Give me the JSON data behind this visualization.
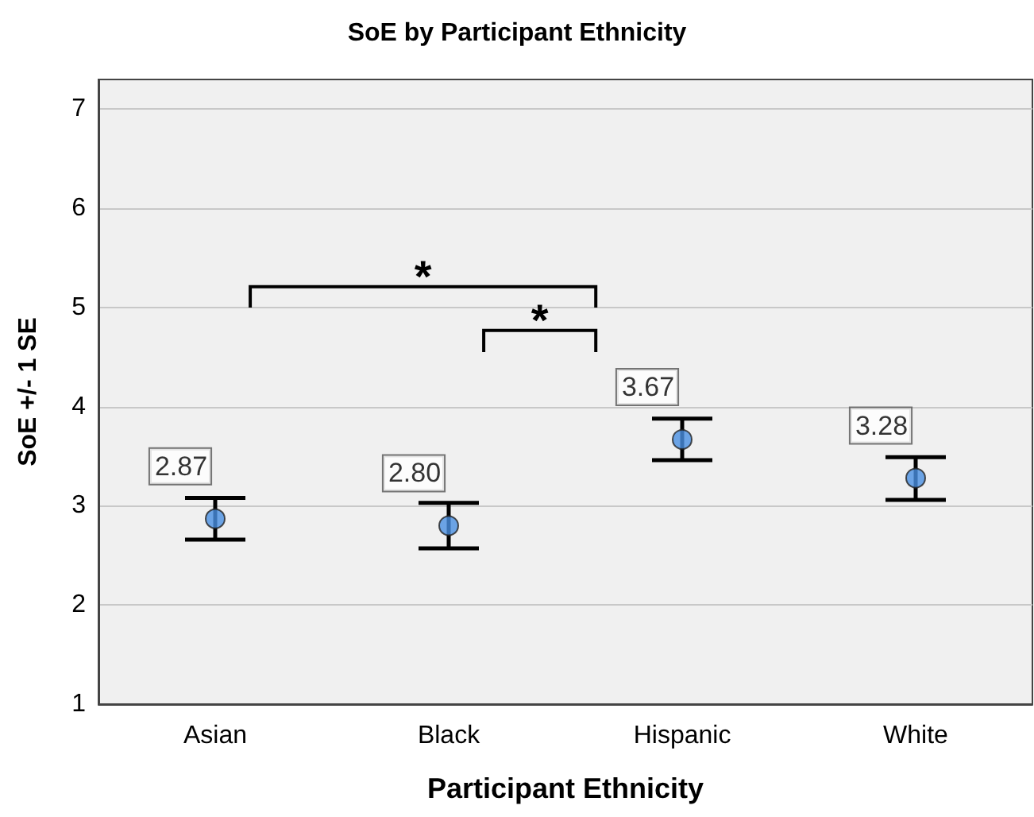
{
  "chart_data": {
    "type": "scatter",
    "title": "SoE by Participant Ethnicity",
    "xlabel": "Participant Ethnicity",
    "ylabel": "SoE +/- 1 SE",
    "categories": [
      "Asian",
      "Black",
      "Hispanic",
      "White"
    ],
    "values": [
      2.87,
      2.8,
      3.67,
      3.28
    ],
    "errors": [
      [
        2.66,
        3.08
      ],
      [
        2.57,
        3.03
      ],
      [
        3.46,
        3.88
      ],
      [
        3.06,
        3.49
      ]
    ],
    "value_labels": [
      "2.87",
      "2.80",
      "3.67",
      "3.28"
    ],
    "color": "#4a90e2",
    "marker": "circle",
    "ylim": [
      1,
      7.3
    ],
    "yticks": [
      1,
      2,
      3,
      4,
      5,
      6,
      7
    ],
    "grid": "y",
    "annotations": [
      "*",
      "*"
    ]
  }
}
